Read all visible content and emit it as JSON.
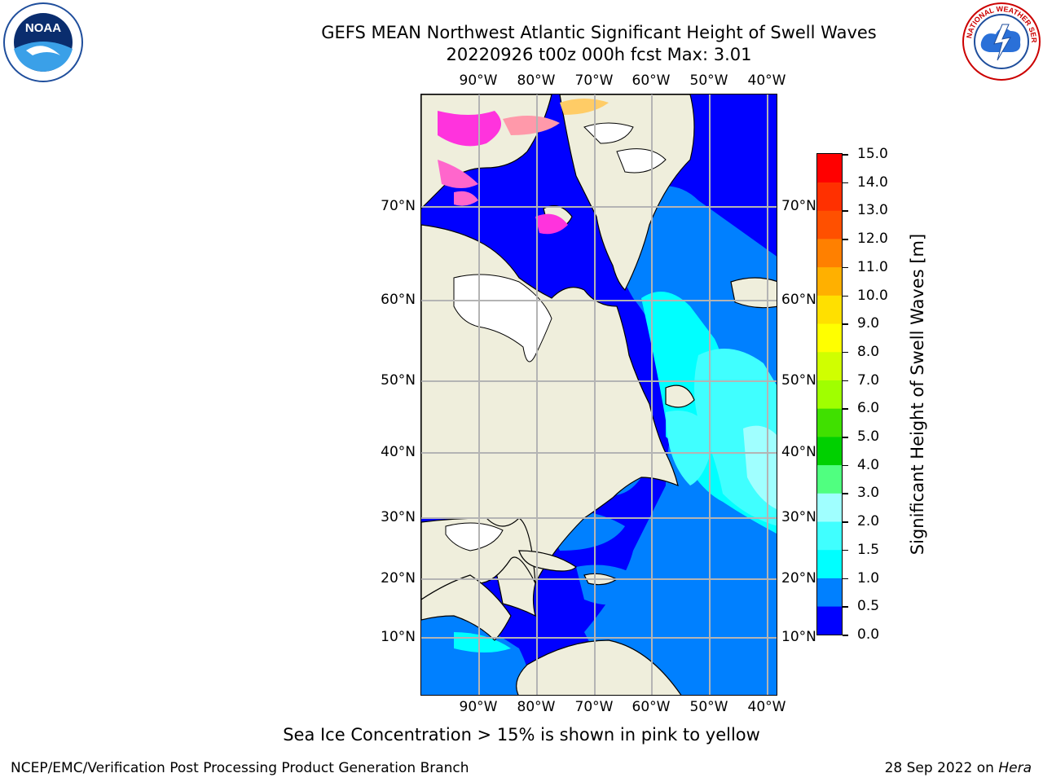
{
  "title_line1": "GEFS MEAN Northwest Atlantic Significant Height of Swell Waves",
  "title_line2": "20220926 t00z 000h fcst   Max: 3.01",
  "logos": {
    "left": "noaa-logo",
    "right": "national-weather-service-logo"
  },
  "map": {
    "projection": "polar-stereographic",
    "lon_labels": [
      "90°W",
      "80°W",
      "70°W",
      "60°W",
      "50°W",
      "40°W"
    ],
    "lat_labels": [
      "70°N",
      "60°N",
      "50°N",
      "40°N",
      "30°N",
      "20°N",
      "10°N"
    ],
    "land_color": "#efeedc",
    "grid_color": "#b4b4b4",
    "missing_color": "#ffffff",
    "ice_colors": [
      "#ff33dd",
      "#ff66cc",
      "#ff99aa",
      "#ffcc66"
    ]
  },
  "colorbar": {
    "title": "Significant Height of Swell Waves [m]",
    "tick_labels": [
      "0.0",
      "0.5",
      "1.0",
      "1.5",
      "2.0",
      "3.0",
      "4.0",
      "5.0",
      "6.0",
      "7.0",
      "8.0",
      "9.0",
      "10.0",
      "11.0",
      "12.0",
      "13.0",
      "14.0",
      "15.0"
    ],
    "colors": [
      "#0000ff",
      "#0080ff",
      "#00ffff",
      "#40ffff",
      "#a0ffff",
      "#50ff80",
      "#00d000",
      "#40e000",
      "#a0ff00",
      "#d0ff00",
      "#ffff00",
      "#ffe000",
      "#ffb000",
      "#ff8000",
      "#ff5000",
      "#ff3000",
      "#ff0000"
    ]
  },
  "footnote": "Sea Ice Concentration > 15% is shown in pink to yellow",
  "credit": "NCEP/EMC/Verification Post Processing Product Generation Branch",
  "date": "28 Sep 2022 on",
  "host": "Hera"
}
